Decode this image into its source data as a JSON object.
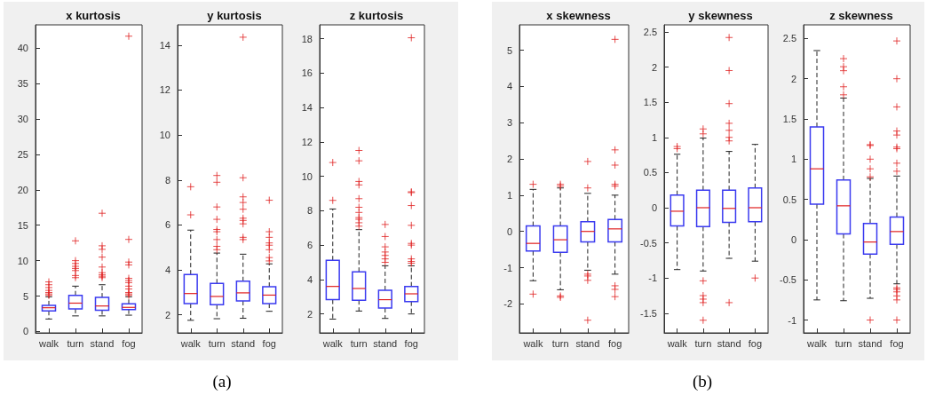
{
  "chart_data": [
    {
      "type": "box",
      "title": "x kurtosis",
      "categories": [
        "walk",
        "turn",
        "stand",
        "fog"
      ],
      "ylim": [
        -0.2,
        43.3
      ],
      "yticks": [
        0,
        5,
        10,
        15,
        20,
        25,
        30,
        35,
        40
      ],
      "marker": "cross",
      "series": [
        {
          "color": "#3a3af0",
          "boxes": [
            {
              "low": 1.76,
              "q1": 2.9,
              "median": 3.35,
              "q3": 3.7,
              "high": 4.9,
              "outliers": [
                7.0,
                6.6,
                6.2,
                5.8,
                5.5,
                5.3,
                5.1
              ]
            },
            {
              "low": 2.2,
              "q1": 3.2,
              "median": 4.0,
              "q3": 5.1,
              "high": 6.4,
              "outliers": [
                12.8,
                10.0,
                9.6,
                9.2,
                8.9,
                8.6,
                7.9,
                7.6
              ]
            },
            {
              "low": 2.2,
              "q1": 3.0,
              "median": 3.6,
              "q3": 4.8,
              "high": 6.6,
              "outliers": [
                16.7,
                12.1,
                11.6,
                10.5,
                9.1,
                8.3,
                8.0,
                7.8,
                7.6
              ]
            },
            {
              "low": 2.3,
              "q1": 3.1,
              "median": 3.4,
              "q3": 3.9,
              "high": 4.9,
              "outliers": [
                41.7,
                13.0,
                9.8,
                9.4,
                7.5,
                7.2,
                6.9,
                6.4,
                6.0,
                5.5,
                5.3,
                5.1
              ]
            }
          ]
        }
      ]
    },
    {
      "type": "box",
      "title": "y kurtosis",
      "annotations": [
        "(a)"
      ],
      "categories": [
        "walk",
        "turn",
        "stand",
        "fog"
      ],
      "ylim": [
        1.2,
        14.9
      ],
      "yticks": [
        2,
        4,
        6,
        8,
        10,
        12,
        14
      ],
      "marker": "cross",
      "series": [
        {
          "color": "#3a3af0",
          "boxes": [
            {
              "low": 1.76,
              "q1": 2.5,
              "median": 2.95,
              "q3": 3.8,
              "high": 5.77,
              "outliers": [
                7.7,
                6.45
              ]
            },
            {
              "low": 1.83,
              "q1": 2.45,
              "median": 2.82,
              "q3": 3.4,
              "high": 4.75,
              "outliers": [
                8.2,
                7.9,
                6.8,
                6.25,
                5.8,
                5.7,
                5.35,
                5.05,
                4.9
              ]
            },
            {
              "low": 1.85,
              "q1": 2.62,
              "median": 2.98,
              "q3": 3.5,
              "high": 4.7,
              "outliers": [
                14.35,
                8.1,
                7.25,
                7.0,
                6.7,
                6.3,
                6.2,
                6.05,
                5.45,
                5.35
              ]
            },
            {
              "low": 2.16,
              "q1": 2.5,
              "median": 2.88,
              "q3": 3.25,
              "high": 4.27,
              "outliers": [
                7.1,
                5.7,
                5.45,
                5.2,
                5.1,
                4.9,
                4.55,
                4.4
              ]
            }
          ]
        }
      ]
    },
    {
      "type": "box",
      "title": "z kurtosis",
      "categories": [
        "walk",
        "turn",
        "stand",
        "fog"
      ],
      "ylim": [
        0.9,
        18.8
      ],
      "yticks": [
        2,
        4,
        6,
        8,
        10,
        12,
        14,
        16,
        18
      ],
      "marker": "cross",
      "series": [
        {
          "color": "#3a3af0",
          "boxes": [
            {
              "low": 1.7,
              "q1": 2.83,
              "median": 3.6,
              "q3": 5.12,
              "high": 8.1,
              "outliers": [
                10.8,
                8.6
              ]
            },
            {
              "low": 2.17,
              "q1": 2.8,
              "median": 3.48,
              "q3": 4.45,
              "high": 6.9,
              "outliers": [
                11.5,
                10.9,
                9.7,
                9.5,
                8.7,
                8.2,
                7.9,
                7.6,
                7.5,
                7.3,
                7.1
              ]
            },
            {
              "low": 1.74,
              "q1": 2.34,
              "median": 2.83,
              "q3": 3.38,
              "high": 4.8,
              "outliers": [
                7.2,
                6.5,
                5.9,
                5.6,
                5.4,
                5.2,
                5.0
              ]
            },
            {
              "low": 2.0,
              "q1": 2.72,
              "median": 3.17,
              "q3": 3.6,
              "high": 4.8,
              "outliers": [
                18.05,
                9.1,
                9.05,
                8.3,
                7.15,
                6.1,
                6.0,
                5.2,
                5.05,
                4.95
              ]
            }
          ]
        }
      ]
    },
    {
      "type": "box",
      "title": "x skewness",
      "categories": [
        "walk",
        "turn",
        "stand",
        "fog"
      ],
      "ylim": [
        -2.8,
        5.7
      ],
      "yticks": [
        -2,
        -1,
        0,
        1,
        2,
        3,
        4,
        5
      ],
      "marker": "cross",
      "series": [
        {
          "color": "#3a3af0",
          "boxes": [
            {
              "low": -1.36,
              "q1": -0.54,
              "median": -0.33,
              "q3": 0.15,
              "high": 1.16,
              "outliers": [
                1.3,
                -1.73
              ]
            },
            {
              "low": -1.61,
              "q1": -0.58,
              "median": -0.23,
              "q3": 0.15,
              "high": 1.2,
              "outliers": [
                1.3,
                1.25,
                -1.78,
                -1.82
              ]
            },
            {
              "low": -1.07,
              "q1": -0.29,
              "median": 0,
              "q3": 0.27,
              "high": 1.05,
              "outliers": [
                1.93,
                1.2,
                -1.18,
                -1.23,
                -1.35,
                -2.45
              ]
            },
            {
              "low": -1.18,
              "q1": -0.29,
              "median": 0.07,
              "q3": 0.33,
              "high": 1.0,
              "outliers": [
                5.3,
                2.25,
                1.83,
                1.3,
                1.25,
                -1.5,
                -1.6,
                -1.8
              ]
            }
          ]
        }
      ]
    },
    {
      "type": "box",
      "title": "y skewness",
      "annotations": [
        "(b)"
      ],
      "categories": [
        "walk",
        "turn",
        "stand",
        "fog"
      ],
      "ylim": [
        -1.78,
        2.6
      ],
      "yticks": [
        -1.5,
        -1,
        -0.5,
        0,
        0.5,
        1,
        1.5,
        2,
        2.5
      ],
      "marker": "cross",
      "series": [
        {
          "color": "#3a3af0",
          "boxes": [
            {
              "low": -0.88,
              "q1": -0.26,
              "median": -0.05,
              "q3": 0.18,
              "high": 0.76,
              "outliers": [
                0.87,
                0.84
              ]
            },
            {
              "low": -0.9,
              "q1": -0.27,
              "median": 0,
              "q3": 0.25,
              "high": 0.99,
              "outliers": [
                1.12,
                1.05,
                -1.04,
                -1.25,
                -1.3,
                -1.35,
                -1.6
              ]
            },
            {
              "low": -0.72,
              "q1": -0.21,
              "median": -0.01,
              "q3": 0.25,
              "high": 0.8,
              "outliers": [
                2.42,
                1.95,
                1.48,
                1.2,
                1.1,
                1.0,
                0.95,
                -1.35
              ]
            },
            {
              "low": -0.76,
              "q1": -0.2,
              "median": 0,
              "q3": 0.28,
              "high": 0.9,
              "outliers": [
                -1.0
              ]
            }
          ]
        }
      ]
    },
    {
      "type": "box",
      "title": "z skewness",
      "categories": [
        "walk",
        "turn",
        "stand",
        "fog"
      ],
      "ylim": [
        -1.16,
        2.67
      ],
      "yticks": [
        -1,
        -0.5,
        0,
        0.5,
        1,
        1.5,
        2,
        2.5
      ],
      "marker": "cross",
      "series": [
        {
          "color": "#3a3af0",
          "boxes": [
            {
              "low": -0.75,
              "q1": 0.44,
              "median": 0.88,
              "q3": 1.4,
              "high": 2.35
            },
            {
              "low": -0.76,
              "q1": 0.07,
              "median": 0.42,
              "q3": 0.74,
              "high": 1.76,
              "outliers": [
                2.25,
                2.15,
                2.1,
                1.9,
                1.8
              ]
            },
            {
              "low": -0.73,
              "q1": -0.18,
              "median": -0.03,
              "q3": 0.2,
              "high": 0.76,
              "outliers": [
                1.18,
                1.17,
                1.0,
                0.88,
                0.78,
                -1.0
              ]
            },
            {
              "low": -0.55,
              "q1": -0.06,
              "median": 0.1,
              "q3": 0.28,
              "high": 0.79,
              "outliers": [
                2.47,
                2.0,
                1.65,
                1.35,
                1.3,
                1.15,
                1.13,
                0.95,
                0.85,
                -0.6,
                -0.62,
                -0.65,
                -0.7,
                -0.75,
                -1.0
              ]
            }
          ]
        }
      ]
    }
  ]
}
